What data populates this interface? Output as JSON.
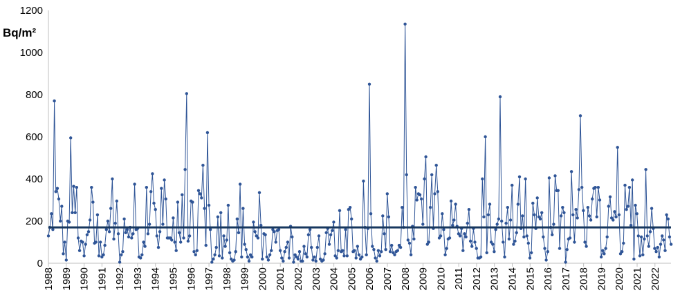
{
  "chart_data": {
    "type": "line",
    "title": "",
    "ylabel": "Bq/m²",
    "xlabel": "",
    "x_ticks": [
      "1988",
      "1989",
      "1990",
      "1991",
      "1992",
      "1993",
      "1994",
      "1995",
      "1996",
      "1997",
      "1998",
      "1999",
      "2000",
      "2001",
      "2002",
      "2003",
      "2004",
      "2005",
      "2006",
      "2007",
      "2008",
      "2009",
      "2010",
      "2011",
      "2012",
      "2013",
      "2014",
      "2015",
      "2016",
      "2017",
      "2018",
      "2019",
      "2020",
      "2021",
      "2022"
    ],
    "y_ticks": [
      "0",
      "200",
      "400",
      "600",
      "800",
      "1000",
      "1200"
    ],
    "ylim": [
      0,
      1200
    ],
    "xlim": [
      1988,
      2022.9
    ],
    "grid": false,
    "colors": {
      "series": "#2f5597",
      "reference_line": "#17375e"
    },
    "reference_line": {
      "value": 170
    },
    "series": [
      {
        "x_start": 1988,
        "step": 0.0833,
        "values": [
          130,
          170,
          235,
          160,
          770,
          340,
          355,
          305,
          200,
          270,
          45,
          100,
          15,
          200,
          195,
          595,
          240,
          365,
          240,
          360,
          120,
          60,
          105,
          100,
          35,
          90,
          135,
          150,
          205,
          360,
          290,
          95,
          100,
          230,
          35,
          100,
          30,
          40,
          85,
          160,
          200,
          150,
          260,
          400,
          115,
          190,
          295,
          140,
          5,
          40,
          55,
          210,
          145,
          160,
          125,
          170,
          120,
          140,
          375,
          160,
          165,
          30,
          25,
          40,
          100,
          80,
          360,
          140,
          185,
          340,
          425,
          285,
          255,
          130,
          75,
          150,
          355,
          185,
          395,
          305,
          120,
          120,
          120,
          110,
          215,
          100,
          60,
          290,
          145,
          100,
          325,
          120,
          445,
          805,
          105,
          130,
          295,
          290,
          55,
          40,
          60,
          345,
          330,
          310,
          465,
          260,
          85,
          620,
          275,
          160,
          5,
          20,
          40,
          75,
          220,
          35,
          240,
          25,
          130,
          80,
          110,
          275,
          50,
          20,
          10,
          15,
          55,
          210,
          145,
          375,
          30,
          260,
          90,
          65,
          30,
          10,
          40,
          30,
          195,
          150,
          130,
          120,
          335,
          180,
          20,
          140,
          135,
          30,
          15,
          40,
          60,
          160,
          150,
          100,
          155,
          160,
          60,
          25,
          10,
          55,
          75,
          100,
          25,
          175,
          125,
          5,
          40,
          30,
          20,
          55,
          10,
          10,
          80,
          45,
          30,
          135,
          160,
          75,
          15,
          30,
          10,
          75,
          130,
          20,
          10,
          15,
          45,
          145,
          165,
          90,
          135,
          155,
          195,
          35,
          25,
          60,
          250,
          55,
          60,
          35,
          160,
          35,
          255,
          265,
          210,
          55,
          60,
          25,
          80,
          40,
          20,
          30,
          390,
          170,
          40,
          165,
          850,
          235,
          80,
          65,
          25,
          10,
          60,
          35,
          55,
          225,
          140,
          65,
          330,
          220,
          55,
          85,
          50,
          40,
          55,
          60,
          85,
          75,
          265,
          170,
          1135,
          420,
          110,
          95,
          40,
          175,
          115,
          360,
          300,
          330,
          325,
          305,
          185,
          400,
          505,
          90,
          100,
          265,
          420,
          165,
          330,
          465,
          340,
          120,
          130,
          235,
          160,
          40,
          70,
          115,
          120,
          295,
          180,
          205,
          280,
          175,
          140,
          130,
          165,
          60,
          140,
          125,
          190,
          255,
          105,
          80,
          165,
          100,
          70,
          25,
          25,
          30,
          400,
          220,
          600,
          50,
          230,
          280,
          100,
          90,
          55,
          160,
          185,
          210,
          790,
          200,
          100,
          30,
          190,
          265,
          115,
          205,
          370,
          90,
          105,
          145,
          280,
          410,
          165,
          225,
          125,
          400,
          130,
          95,
          25,
          50,
          285,
          230,
          165,
          310,
          220,
          210,
          240,
          125,
          70,
          15,
          55,
          405,
          170,
          135,
          185,
          415,
          345,
          345,
          70,
          225,
          265,
          240,
          5,
          65,
          115,
          120,
          435,
          230,
          100,
          255,
          215,
          350,
          700,
          360,
          250,
          100,
          80,
          265,
          225,
          205,
          305,
          355,
          360,
          220,
          360,
          300,
          30,
          60,
          45,
          70,
          125,
          270,
          315,
          215,
          205,
          245,
          220,
          550,
          230,
          45,
          55,
          95,
          370,
          255,
          270,
          360,
          180,
          395,
          20,
          275,
          235,
          130,
          35,
          125,
          40,
          115,
          445,
          130,
          80,
          150,
          260,
          165,
          70,
          55,
          75,
          30,
          90,
          130,
          110,
          60,
          230,
          210,
          125,
          90
        ]
      }
    ]
  }
}
